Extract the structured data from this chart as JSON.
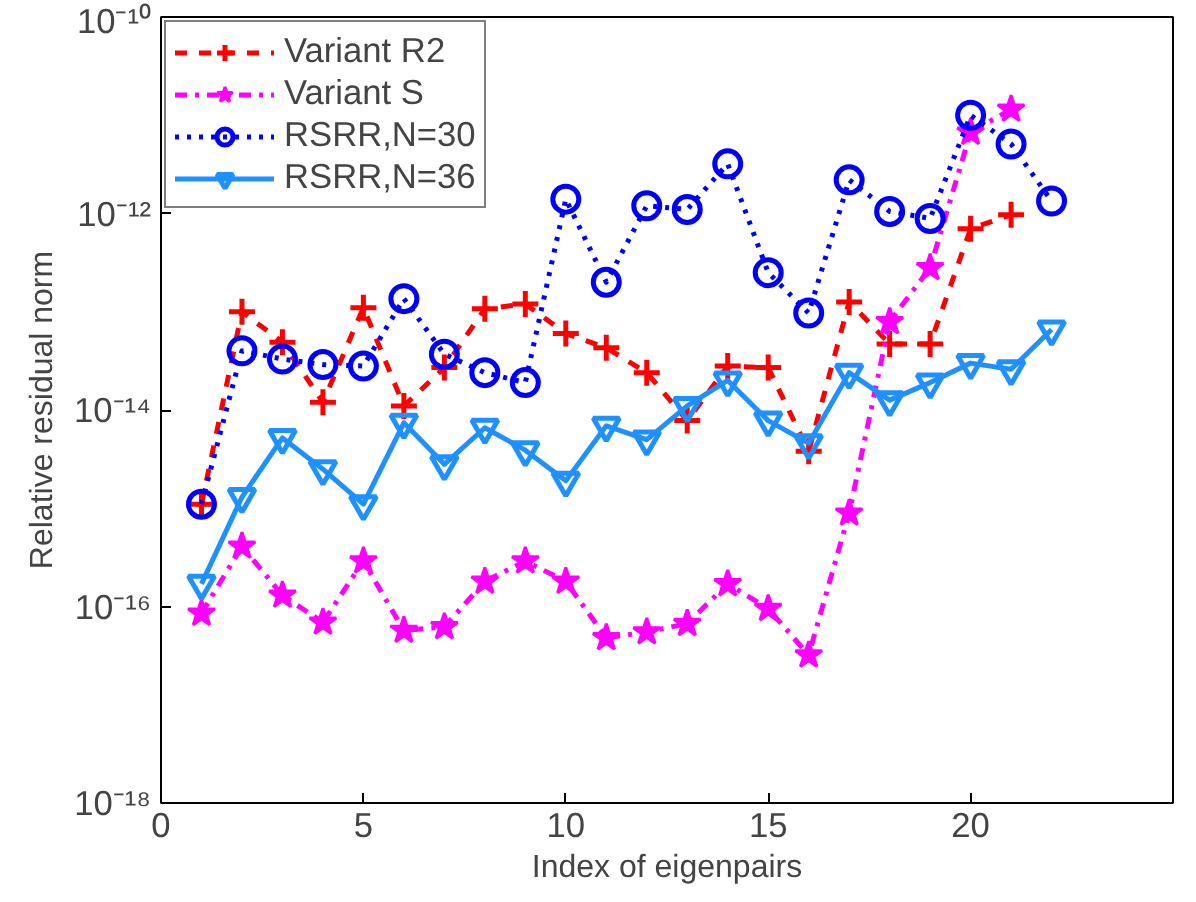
{
  "chart_data": {
    "type": "line",
    "xlabel": "Index of eigenpairs",
    "ylabel": "Relative residual norm",
    "log": "y",
    "grid": false,
    "legend": "top left",
    "xlim": [
      0,
      25
    ],
    "xticks": [
      0,
      5,
      10,
      15,
      20
    ],
    "ylim": [
      1e-18,
      1e-10
    ],
    "yticks": [
      {
        "value": 1e-18,
        "label": "10⁻¹⁸"
      },
      {
        "value": 1e-16,
        "label": "10⁻¹⁶"
      },
      {
        "value": 1e-14,
        "label": "10⁻¹⁴"
      },
      {
        "value": 1e-12,
        "label": "10⁻¹²"
      },
      {
        "value": 1e-10,
        "label": "10⁻¹⁰"
      }
    ],
    "series": [
      {
        "name": "Variant R2",
        "color": "#ff0000",
        "marker": "cross",
        "line_style": "dashed",
        "x": [
          1,
          2,
          3,
          4,
          5,
          6,
          7,
          8,
          9,
          10,
          11,
          12,
          13,
          14,
          15,
          16,
          17,
          18,
          19,
          20,
          21
        ],
        "values": [
          1.1e-15,
          1e-13,
          4.9e-14,
          1.2e-14,
          1.1e-13,
          1.1e-14,
          2.7e-14,
          1.07e-13,
          1.2e-13,
          6e-14,
          4.3e-14,
          2.4e-14,
          7.8e-15,
          2.8e-14,
          2.7e-14,
          3.8e-15,
          1.26e-13,
          4.7e-14,
          4.7e-14,
          7e-13,
          9.7e-13
        ]
      },
      {
        "name": "Variant S",
        "color": "#ff00ff",
        "marker": "star",
        "line_style": "dashdot",
        "x": [
          1,
          2,
          3,
          4,
          5,
          6,
          7,
          8,
          9,
          10,
          11,
          12,
          13,
          14,
          15,
          16,
          17,
          18,
          19,
          20,
          21
        ],
        "values": [
          8.5e-17,
          4.1e-16,
          1.3e-16,
          6.9e-17,
          2.9e-16,
          5.7e-17,
          6.2e-17,
          1.8e-16,
          2.9e-16,
          1.8e-16,
          4.8e-17,
          5.5e-17,
          6.7e-17,
          1.7e-16,
          9.5e-17,
          3.2e-17,
          8.9e-16,
          7.9e-14,
          2.8e-13,
          6.7e-12,
          1.15e-11
        ]
      },
      {
        "name": "RSRR,N=30",
        "color": "#0000ff",
        "marker": "circle",
        "line_style": "dotted",
        "x": [
          1,
          2,
          3,
          4,
          5,
          6,
          7,
          8,
          9,
          10,
          11,
          12,
          13,
          14,
          15,
          16,
          17,
          18,
          19,
          20,
          21,
          22
        ],
        "values": [
          1.1e-15,
          4e-14,
          3.3e-14,
          2.9e-14,
          2.8e-14,
          1.36e-13,
          3.7e-14,
          2.4e-14,
          1.9e-14,
          1.4e-12,
          2e-13,
          1.2e-12,
          1.1e-12,
          3.2e-12,
          2.5e-13,
          9.7e-14,
          2.2e-12,
          1.05e-12,
          8.9e-13,
          1e-11,
          5.1e-12,
          1.34e-12
        ]
      },
      {
        "name": "RSRR,N=36",
        "color": "#1e90ff",
        "marker": "triangle",
        "line_style": "solid",
        "x": [
          1,
          2,
          3,
          4,
          5,
          6,
          7,
          8,
          9,
          10,
          11,
          12,
          13,
          14,
          15,
          16,
          17,
          18,
          19,
          20,
          21,
          22
        ],
        "values": [
          1.7e-16,
          1.3e-15,
          5.2e-15,
          2.5e-15,
          1.1e-15,
          7.4e-15,
          2.8e-15,
          6.6e-15,
          3.9e-15,
          1.9e-15,
          6.9e-15,
          5e-15,
          1.1e-14,
          2e-14,
          7.8e-15,
          4.6e-15,
          2.4e-14,
          1.26e-14,
          1.9e-14,
          3e-14,
          2.6e-14,
          6.6e-14
        ]
      }
    ]
  }
}
